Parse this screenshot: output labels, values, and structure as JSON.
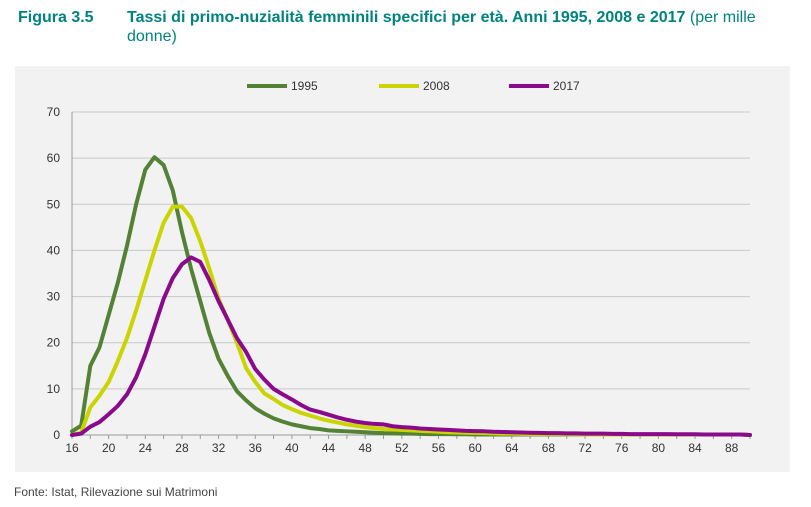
{
  "figure": {
    "number": "Figura 3.5",
    "title": "Tassi di primo-nuzialità femminili specifici per età. Anni 1995, 2008 e 2017",
    "subtitle": "(per mille donne)"
  },
  "source": "Fonte: Istat, Rilevazione sui Matrimoni",
  "chart_data": {
    "type": "line",
    "title": "Tassi di primo-nuzialità femminili specifici per età. Anni 1995, 2008 e 2017 (per mille donne)",
    "xlabel": "",
    "ylabel": "",
    "xlim": [
      16,
      90
    ],
    "ylim": [
      0,
      70
    ],
    "xticks": [
      16,
      20,
      24,
      28,
      32,
      36,
      40,
      44,
      48,
      52,
      56,
      60,
      64,
      68,
      72,
      76,
      80,
      84,
      88
    ],
    "yticks": [
      0,
      10,
      20,
      30,
      40,
      50,
      60,
      70
    ],
    "grid": "horizontal",
    "legend_position": "top-center",
    "x": [
      16,
      17,
      18,
      19,
      20,
      21,
      22,
      23,
      24,
      25,
      26,
      27,
      28,
      29,
      30,
      31,
      32,
      33,
      34,
      35,
      36,
      37,
      38,
      39,
      40,
      41,
      42,
      43,
      44,
      45,
      46,
      47,
      48,
      49,
      50,
      51,
      52,
      53,
      54,
      55,
      56,
      57,
      58,
      59,
      60,
      61,
      62,
      63,
      64,
      65,
      66,
      67,
      68,
      69,
      70,
      71,
      72,
      73,
      74,
      75,
      76,
      77,
      78,
      79,
      80,
      81,
      82,
      83,
      84,
      85,
      86,
      87,
      88,
      89,
      90
    ],
    "series": [
      {
        "name": "1995",
        "color": "#548235",
        "values": [
          0.8,
          2,
          15,
          19,
          26,
          33,
          41,
          50,
          57.5,
          60.2,
          58.5,
          53,
          44,
          36,
          29,
          22,
          16.5,
          12.8,
          9.5,
          7.5,
          5.8,
          4.6,
          3.6,
          2.9,
          2.3,
          1.9,
          1.5,
          1.3,
          1.0,
          0.9,
          0.8,
          0.7,
          0.6,
          0.5,
          0.4,
          0.35,
          0.3,
          0.3,
          0.25,
          0.2,
          0.2,
          0.2,
          0.15,
          0.15,
          0.1,
          0.1,
          0.1,
          0.1,
          0.1,
          0.1,
          0.1,
          0.1,
          0.1,
          0.1,
          0.1,
          0.1,
          0.1,
          0.1,
          0.1,
          0.1,
          0.1,
          0.1,
          0.1,
          0.1,
          0.1,
          0.1,
          0.1,
          0.1,
          0.1,
          0.1,
          0.1,
          0.1,
          0.1,
          0.1,
          0
        ]
      },
      {
        "name": "2008",
        "color": "#c9d400",
        "values": [
          0,
          0.5,
          6,
          8.5,
          11.5,
          16,
          21,
          27,
          33.5,
          40,
          46,
          49.5,
          49.5,
          47,
          42,
          36,
          29.5,
          25,
          20,
          14.5,
          11.5,
          9,
          7.8,
          6.5,
          5.6,
          4.8,
          4.2,
          3.6,
          3.1,
          2.7,
          2.3,
          2.0,
          1.7,
          1.5,
          1.3,
          1.2,
          1.1,
          1.0,
          0.9,
          0.8,
          0.7,
          0.6,
          0.55,
          0.5,
          0.45,
          0.4,
          0.35,
          0.3,
          0.3,
          0.25,
          0.2,
          0.2,
          0.2,
          0.2,
          0.15,
          0.15,
          0.1,
          0.1,
          0.1,
          0.1,
          0.1,
          0.1,
          0.1,
          0.1,
          0.1,
          0.1,
          0.1,
          0.1,
          0.1,
          0.1,
          0.1,
          0.1,
          0.1,
          0.1,
          0
        ]
      },
      {
        "name": "2017",
        "color": "#8b0a8b",
        "values": [
          0,
          0.3,
          1.8,
          2.8,
          4.5,
          6.3,
          8.8,
          12.5,
          17.5,
          23.5,
          29.5,
          34,
          37,
          38.5,
          37.5,
          33.5,
          29,
          25,
          21,
          18,
          14.3,
          12,
          10,
          8.8,
          7.7,
          6.5,
          5.5,
          5,
          4.4,
          3.8,
          3.3,
          2.9,
          2.6,
          2.4,
          2.3,
          1.9,
          1.7,
          1.6,
          1.4,
          1.3,
          1.2,
          1.1,
          1.0,
          0.9,
          0.85,
          0.8,
          0.7,
          0.65,
          0.6,
          0.55,
          0.5,
          0.45,
          0.4,
          0.4,
          0.35,
          0.35,
          0.3,
          0.3,
          0.3,
          0.25,
          0.25,
          0.2,
          0.2,
          0.2,
          0.2,
          0.2,
          0.15,
          0.15,
          0.15,
          0.1,
          0.1,
          0.1,
          0.1,
          0.1,
          0
        ]
      }
    ]
  }
}
